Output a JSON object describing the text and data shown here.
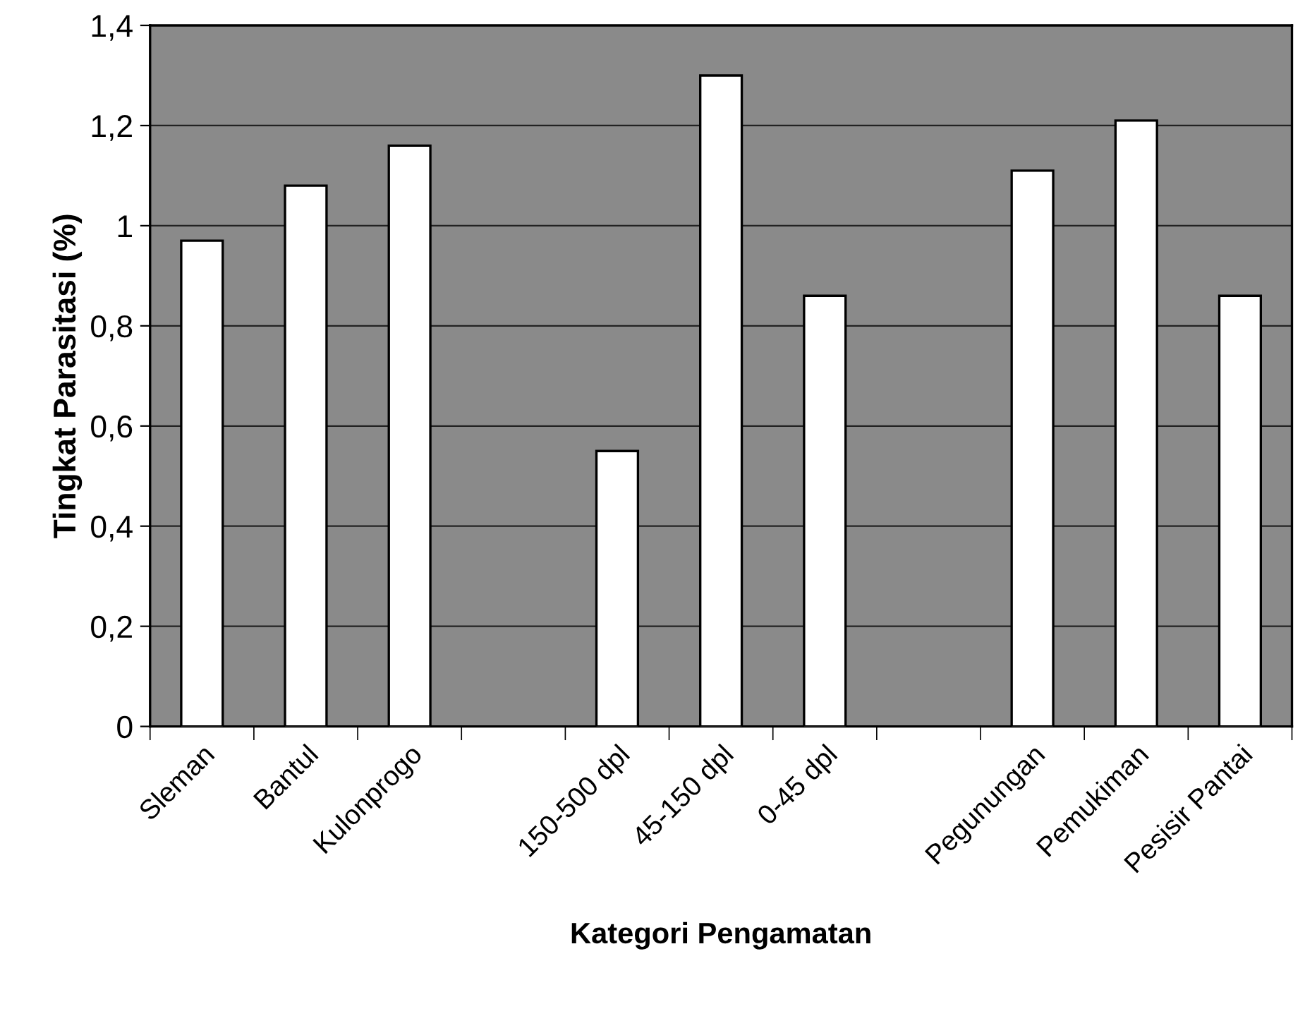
{
  "chart_data": {
    "type": "bar",
    "xlabel": "Kategori Pengamatan",
    "ylabel": "Tingkat Parasitasi (%)",
    "categories": [
      "Sleman",
      "Bantul",
      "Kulonprogo",
      null,
      "150-500 dpl",
      "45-150 dpl",
      "0-45 dpl",
      null,
      "Pegunungan",
      "Pemukiman",
      "Pesisir Pantai"
    ],
    "values": [
      0.97,
      1.08,
      1.16,
      null,
      0.55,
      1.3,
      0.86,
      null,
      1.11,
      1.21,
      0.86
    ],
    "color": "#ffffff",
    "ylim": [
      0,
      1.4
    ],
    "yticks": [
      {
        "value": 0,
        "label": "0"
      },
      {
        "value": 0.2,
        "label": "0,2"
      },
      {
        "value": 0.4,
        "label": "0,4"
      },
      {
        "value": 0.6,
        "label": "0,6"
      },
      {
        "value": 0.8,
        "label": "0,8"
      },
      {
        "value": 1,
        "label": "1"
      },
      {
        "value": 1.2,
        "label": "1,2"
      },
      {
        "value": 1.4,
        "label": "1,4"
      }
    ],
    "grid": "y",
    "legend": false
  }
}
